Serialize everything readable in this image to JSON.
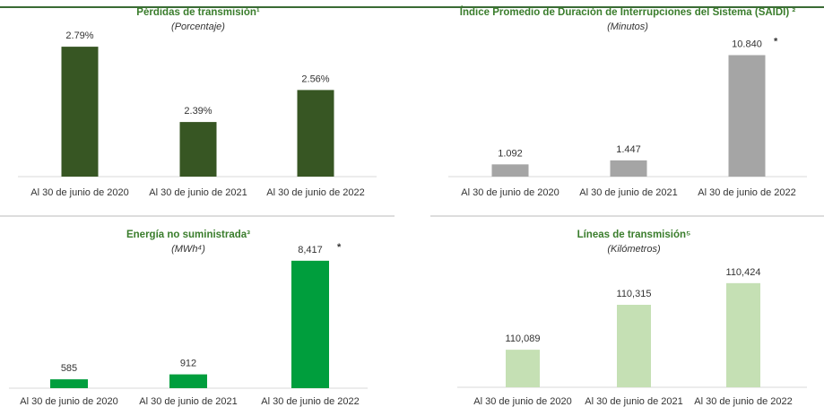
{
  "chart_data": [
    {
      "type": "bar",
      "title": "Pérdidas de transmisión¹",
      "subtitle": "(Porcentaje)",
      "categories": [
        "Al 30 de junio de 2020",
        "Al 30 de junio de 2021",
        "Al 30 de junio de 2022"
      ],
      "values": [
        2.79,
        2.39,
        2.56
      ],
      "value_labels": [
        "2.79%",
        "2.39%",
        "2.56%"
      ],
      "color": "#375623",
      "ylim": [
        2.1,
        2.9
      ]
    },
    {
      "type": "bar",
      "title": "Índice Promedio de Duración de Interrupciones del Sistema (SAIDI) ²",
      "subtitle": "(Minutos)",
      "categories": [
        "Al 30 de junio de 2020",
        "Al 30 de junio de 2021",
        "Al 30 de junio de 2022"
      ],
      "values": [
        1.092,
        1.447,
        10.84
      ],
      "value_labels": [
        "1.092",
        "1.447",
        "10.840"
      ],
      "annotation": "*",
      "color": "#a5a5a5",
      "ylim": [
        0,
        12
      ]
    },
    {
      "type": "bar",
      "title": "Energía no suministrada³",
      "subtitle": "(MWh⁴)",
      "categories": [
        "Al 30 de junio de 2020",
        "Al 30 de junio de 2021",
        "Al 30 de junio de 2022"
      ],
      "values": [
        585,
        912,
        8417
      ],
      "value_labels": [
        "585",
        "912",
        "8,417"
      ],
      "annotation": "*",
      "color": "#009e3d",
      "ylim": [
        0,
        9000
      ]
    },
    {
      "type": "bar",
      "title": "Líneas de transmisión⁵",
      "subtitle": "(Kilómetros)",
      "categories": [
        "Al 30 de junio de 2020",
        "Al 30 de junio de 2021",
        "Al 30 de junio de 2022"
      ],
      "values": [
        110089,
        110315,
        110424
      ],
      "value_labels": [
        "110,089",
        "110,315",
        "110,424"
      ],
      "color": "#c5e0b4",
      "ylim": [
        109900,
        110500
      ]
    }
  ]
}
